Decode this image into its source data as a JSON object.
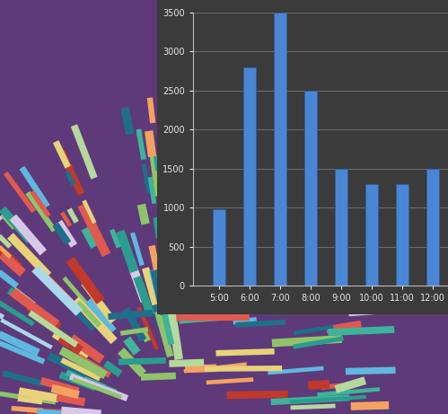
{
  "chart_data": {
    "type": "bar",
    "categories": [
      "5:00",
      "6:00",
      "7:00",
      "8:00",
      "9:00",
      "10:00",
      "11:00",
      "12:00"
    ],
    "values": [
      980,
      2800,
      3500,
      2500,
      1500,
      1300,
      1300,
      1500
    ],
    "color": "#4a86d4",
    "ylim": [
      0,
      3500
    ],
    "yticks": [
      0,
      500,
      1000,
      1500,
      2000,
      2500,
      3000,
      3500
    ],
    "grid": true
  }
}
